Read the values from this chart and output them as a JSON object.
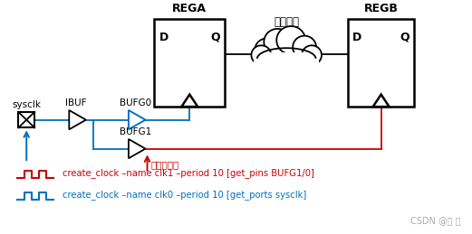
{
  "bg_color": "#ffffff",
  "blue_color": "#0070c0",
  "red_color": "#cc0000",
  "black_color": "#000000",
  "rega_label": "REGA",
  "regb_label": "REGB",
  "data_path_label": "数据路径",
  "sysclk_label": "sysclk",
  "ibuf_label": "IBUF",
  "bufg0_label": "BUFG0",
  "bufg1_label": "BUFG1",
  "d_label": "D",
  "q_label": "Q",
  "warning_label": "不建议使用",
  "cmd1": "create_clock –name clk1 –period 10 [get_pins BUFG1/0]",
  "cmd2": "create_clock –name clk0 –period 10 [get_ports sysclk]",
  "watermark": "CSDN @冬 齐"
}
